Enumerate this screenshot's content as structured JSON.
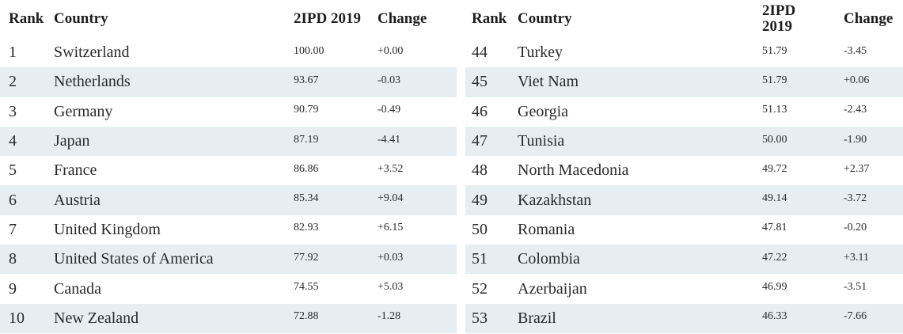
{
  "headers": {
    "rank": "Rank",
    "country": "Country",
    "score": "2IPD 2019",
    "change": "Change"
  },
  "left_rows": [
    {
      "rank": "1",
      "country": "Switzerland",
      "score": "100.00",
      "change": "+0.00"
    },
    {
      "rank": "2",
      "country": "Netherlands",
      "score": "93.67",
      "change": "-0.03"
    },
    {
      "rank": "3",
      "country": "Germany",
      "score": "90.79",
      "change": "-0.49"
    },
    {
      "rank": "4",
      "country": "Japan",
      "score": "87.19",
      "change": "-4.41"
    },
    {
      "rank": "5",
      "country": "France",
      "score": "86.86",
      "change": "+3.52"
    },
    {
      "rank": "6",
      "country": "Austria",
      "score": "85.34",
      "change": "+9.04"
    },
    {
      "rank": "7",
      "country": "United Kingdom",
      "score": "82.93",
      "change": "+6.15"
    },
    {
      "rank": "8",
      "country": "United States of America",
      "score": "77.92",
      "change": "+0.03"
    },
    {
      "rank": "9",
      "country": "Canada",
      "score": "74.55",
      "change": "+5.03"
    },
    {
      "rank": "10",
      "country": "New Zealand",
      "score": "72.88",
      "change": "-1.28"
    }
  ],
  "right_rows": [
    {
      "rank": "44",
      "country": "Turkey",
      "score": "51.79",
      "change": "-3.45"
    },
    {
      "rank": "45",
      "country": "Viet Nam",
      "score": "51.79",
      "change": "+0.06"
    },
    {
      "rank": "46",
      "country": "Georgia",
      "score": "51.13",
      "change": "-2.43"
    },
    {
      "rank": "47",
      "country": "Tunisia",
      "score": "50.00",
      "change": "-1.90"
    },
    {
      "rank": "48",
      "country": "North Macedonia",
      "score": "49.72",
      "change": "+2.37"
    },
    {
      "rank": "49",
      "country": "Kazakhstan",
      "score": "49.14",
      "change": "-3.72"
    },
    {
      "rank": "50",
      "country": "Romania",
      "score": "47.81",
      "change": "-0.20"
    },
    {
      "rank": "51",
      "country": "Colombia",
      "score": "47.22",
      "change": "+3.11"
    },
    {
      "rank": "52",
      "country": "Azerbaijan",
      "score": "46.99",
      "change": "-3.51"
    },
    {
      "rank": "53",
      "country": "Brazil",
      "score": "46.33",
      "change": "-7.66"
    }
  ]
}
